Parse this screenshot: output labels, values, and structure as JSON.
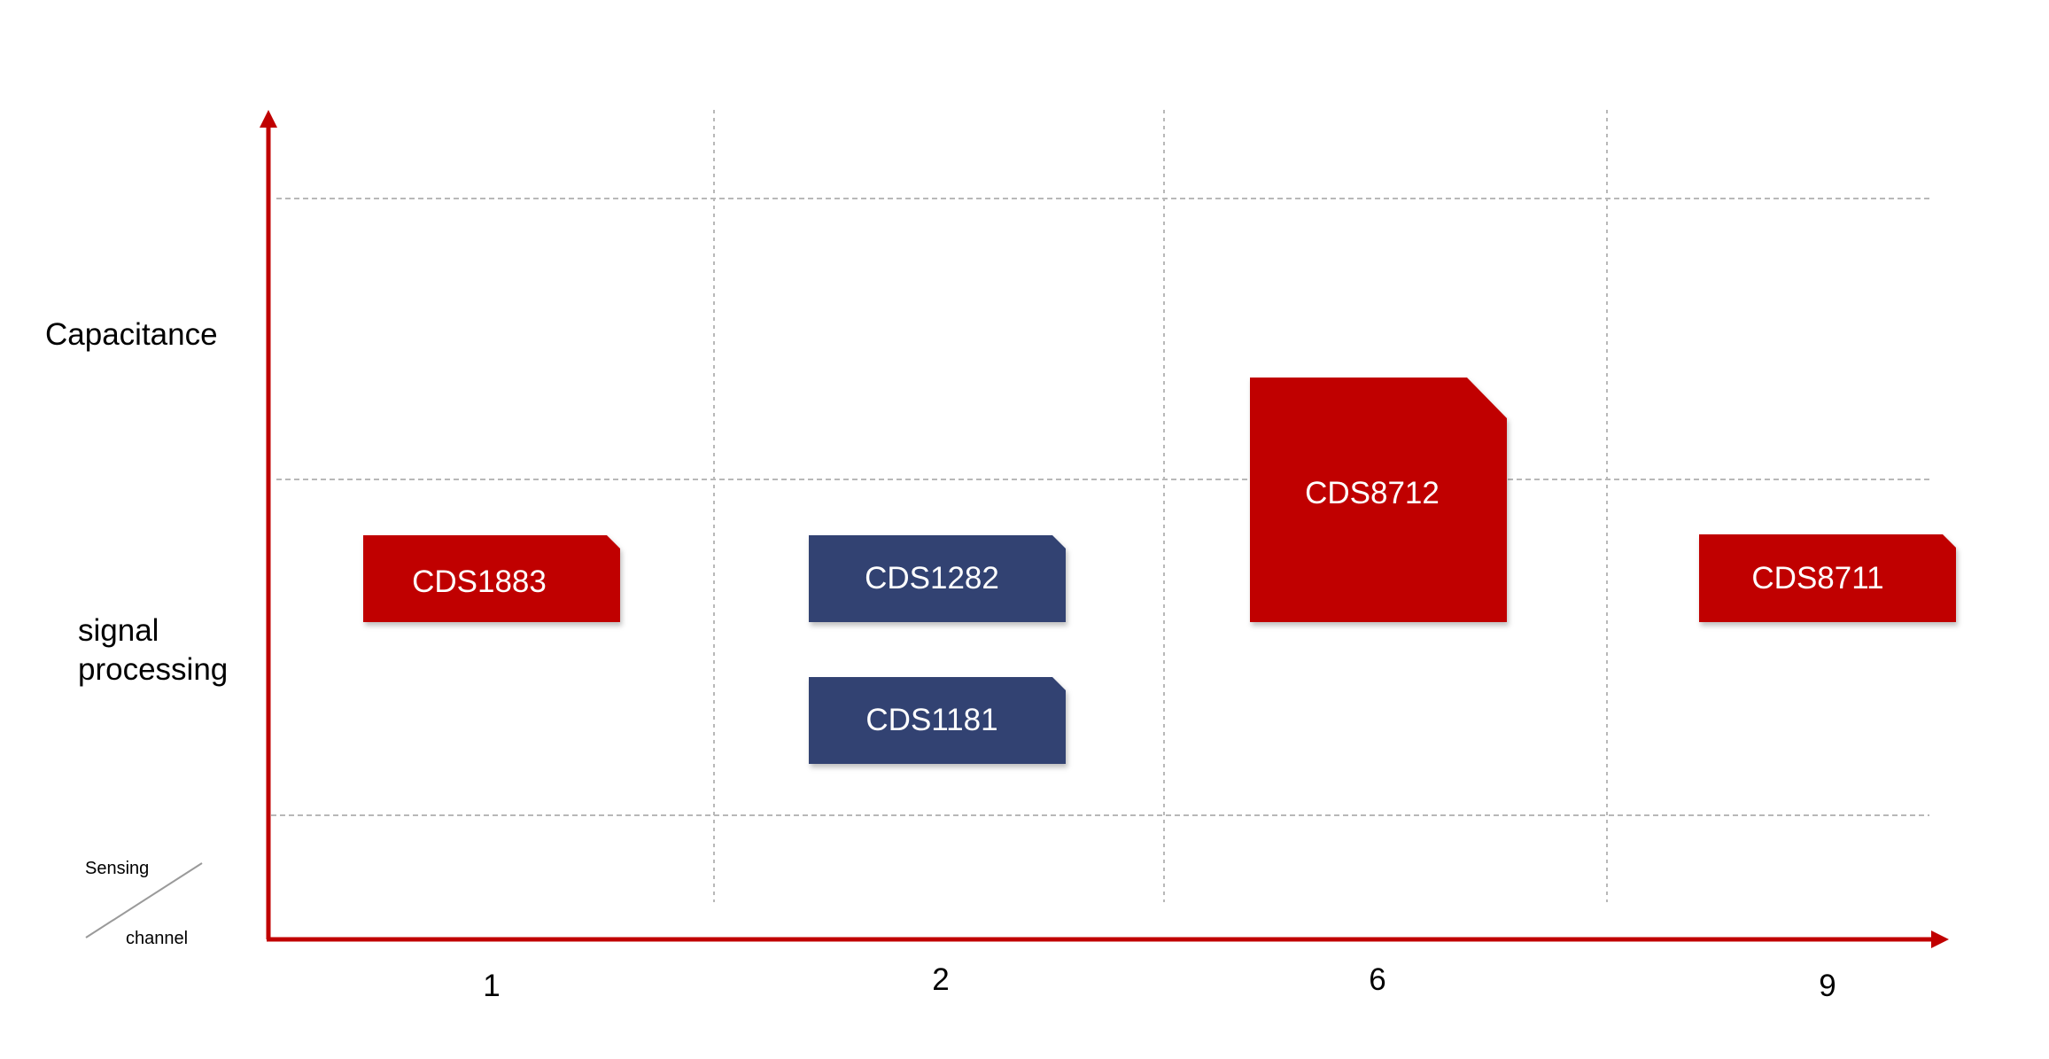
{
  "row_labels": {
    "top": "Capacitance",
    "middle_line1": "signal",
    "middle_line2": "processing"
  },
  "corner": {
    "top": "Sensing",
    "bottom": "channel"
  },
  "columns": [
    "1",
    "2",
    "6",
    "9"
  ],
  "colors": {
    "axis": "#c00000",
    "red_product": "#c00000",
    "blue_product": "#334272",
    "grid": "#b8b8b8",
    "product_text": "#ffffff"
  },
  "products": [
    {
      "label": "CDS1883",
      "channel": "1",
      "row": "signal processing",
      "color": "red"
    },
    {
      "label": "CDS1282",
      "channel": "2",
      "row": "signal processing",
      "color": "blue"
    },
    {
      "label": "CDS1181",
      "channel": "2",
      "row": "signal processing",
      "color": "blue"
    },
    {
      "label": "CDS8712",
      "channel": "6",
      "row": "capacitance + signal processing",
      "color": "red"
    },
    {
      "label": "CDS8711",
      "channel": "9",
      "row": "signal processing",
      "color": "red"
    }
  ]
}
